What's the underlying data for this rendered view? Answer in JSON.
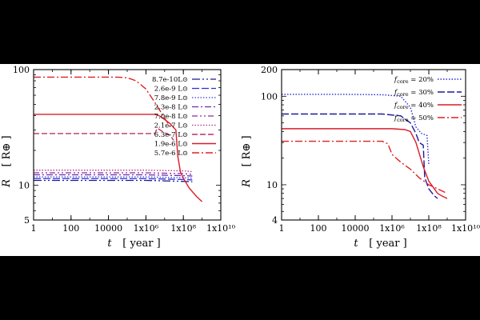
{
  "chart_data": [
    {
      "type": "line",
      "xscale": "log",
      "yscale": "log",
      "xlim": [
        1,
        10000000000
      ],
      "ylim": [
        5,
        100
      ],
      "xlabel": "t",
      "xunit": "[ year ]",
      "ylabel": "R",
      "yunit": "[ R⊕ ]",
      "xticks": [
        {
          "v": 1,
          "label": "1"
        },
        {
          "v": 100,
          "label": "100"
        },
        {
          "v": 10000,
          "label": "10000"
        },
        {
          "v": 1000000,
          "label": "1x10⁶"
        },
        {
          "v": 100000000,
          "label": "1x10⁸"
        },
        {
          "v": 10000000000,
          "label": "1x10¹⁰"
        }
      ],
      "yticks": [
        {
          "v": 5,
          "label": "5"
        },
        {
          "v": 10,
          "label": "10"
        },
        {
          "v": 100,
          "label": "100"
        }
      ],
      "legend_position": "right",
      "series": [
        {
          "name": "8.7e-10L⊙",
          "color": "#1a1a8c",
          "dash": "10,3,2,3,2,3",
          "width": 1.3,
          "points": [
            [
              1,
              11.0
            ],
            [
              1000000,
              11.0
            ],
            [
              10000000,
              10.9
            ],
            [
              100000000,
              10.8
            ],
            [
              300000000,
              10.7
            ]
          ]
        },
        {
          "name": "2.6e-9 L⊙",
          "color": "#2d2de0",
          "dash": "9,3",
          "width": 1.3,
          "points": [
            [
              1,
              11.4
            ],
            [
              1000000,
              11.4
            ],
            [
              10000000,
              11.3
            ],
            [
              100000000,
              11.2
            ],
            [
              300000000,
              11.1
            ]
          ]
        },
        {
          "name": "7.8e-9 L⊙",
          "color": "#3c3cdc",
          "dash": "1.5,2",
          "width": 1.3,
          "points": [
            [
              1,
              11.8
            ],
            [
              1000000,
              11.8
            ],
            [
              10000000,
              11.7
            ],
            [
              100000000,
              11.6
            ],
            [
              300000000,
              11.5
            ]
          ]
        },
        {
          "name": "2.3e-8 L⊙",
          "color": "#6a2ab0",
          "dash": "8,3,2,3",
          "width": 1.3,
          "points": [
            [
              1,
              12.3
            ],
            [
              1000000,
              12.3
            ],
            [
              10000000,
              12.2
            ],
            [
              100000000,
              12.1
            ],
            [
              300000000,
              12.0
            ]
          ]
        },
        {
          "name": "7.0e-8 L⊙",
          "color": "#8e2a9e",
          "dash": "7,3,2,3,2,3",
          "width": 1.3,
          "points": [
            [
              1,
              12.8
            ],
            [
              1000000,
              12.8
            ],
            [
              10000000,
              12.7
            ],
            [
              100000000,
              12.6
            ],
            [
              300000000,
              12.4
            ]
          ]
        },
        {
          "name": "2.1e-7 L⊙",
          "color": "#b0308c",
          "dash": "1.5,2",
          "width": 1.3,
          "points": [
            [
              1,
              13.5
            ],
            [
              1000000,
              13.5
            ],
            [
              10000000,
              13.4
            ],
            [
              100000000,
              13.3
            ],
            [
              300000000,
              13.1
            ]
          ]
        },
        {
          "name": "6.3e-7 L⊙",
          "color": "#c0306a",
          "dash": "7,3",
          "width": 1.4,
          "points": [
            [
              1,
              28
            ],
            [
              3000000,
              28
            ],
            [
              4000000,
              31
            ],
            [
              5000000,
              30.5
            ],
            [
              8000000,
              29
            ],
            [
              20000000,
              27
            ],
            [
              30000000,
              24.5
            ]
          ]
        },
        {
          "name": "1.9e-6 L⊙",
          "color": "#d81e2a",
          "dash": "",
          "width": 1.4,
          "points": [
            [
              1,
              41
            ],
            [
              3000000,
              41
            ],
            [
              5000000,
              40
            ],
            [
              10000000,
              37
            ],
            [
              20000000,
              34
            ],
            [
              40000000,
              30
            ],
            [
              50000000,
              18
            ],
            [
              70000000,
              13
            ],
            [
              100000000,
              11.5
            ],
            [
              200000000,
              9.5
            ],
            [
              500000000,
              8
            ],
            [
              1000000000,
              7.2
            ]
          ]
        },
        {
          "name": "5.7e-6 L⊙",
          "color": "#e02020",
          "dash": "9,3,2,3",
          "width": 1.4,
          "points": [
            [
              1,
              86
            ],
            [
              30000,
              86
            ],
            [
              100000,
              85
            ],
            [
              300000,
              80
            ],
            [
              1000000,
              68
            ],
            [
              3000000,
              52
            ],
            [
              10000000,
              38
            ],
            [
              20000000,
              32
            ]
          ]
        }
      ]
    },
    {
      "type": "line",
      "xscale": "log",
      "yscale": "log",
      "xlim": [
        1,
        10000000000
      ],
      "ylim": [
        4,
        200
      ],
      "xlabel": "t",
      "xunit": "[ year ]",
      "ylabel": "R",
      "yunit": "[ R⊕ ]",
      "xticks": [
        {
          "v": 1,
          "label": "1"
        },
        {
          "v": 100,
          "label": "100"
        },
        {
          "v": 10000,
          "label": "10000"
        },
        {
          "v": 1000000,
          "label": "1x10⁶"
        },
        {
          "v": 100000000,
          "label": "1x10⁸"
        },
        {
          "v": 10000000000,
          "label": "1x10¹⁰"
        }
      ],
      "yticks": [
        {
          "v": 4,
          "label": "4"
        },
        {
          "v": 10,
          "label": "10"
        },
        {
          "v": 100,
          "label": "100"
        },
        {
          "v": 200,
          "label": "200"
        }
      ],
      "legend_position": "top-right",
      "legend_prefix": "f",
      "legend_sub": "core",
      "series": [
        {
          "name": " = 20%",
          "color": "#2a2ad8",
          "dash": "1.5,2",
          "width": 1.4,
          "points": [
            [
              1,
              105
            ],
            [
              3000,
              105
            ],
            [
              300000,
              104
            ],
            [
              3000000,
              100
            ],
            [
              10000000,
              75
            ],
            [
              20000000,
              45
            ],
            [
              40000000,
              38
            ],
            [
              80000000,
              36
            ],
            [
              100000000,
              17
            ]
          ]
        },
        {
          "name": " = 30%",
          "color": "#1a1aa0",
          "dash": "9,3",
          "width": 1.4,
          "points": [
            [
              1,
              63
            ],
            [
              300000,
              63
            ],
            [
              3000000,
              60
            ],
            [
              10000000,
              50
            ],
            [
              20000000,
              38
            ],
            [
              30000000,
              30
            ],
            [
              50000000,
              28
            ],
            [
              60000000,
              12
            ],
            [
              100000000,
              9
            ],
            [
              200000000,
              7.5
            ],
            [
              300000000,
              7
            ]
          ]
        },
        {
          "name": " = 40%",
          "color": "#d81e2a",
          "dash": "",
          "width": 1.4,
          "points": [
            [
              1,
              43
            ],
            [
              1000000,
              43
            ],
            [
              5000000,
              42
            ],
            [
              10000000,
              40
            ],
            [
              20000000,
              30
            ],
            [
              50000000,
              16
            ],
            [
              100000000,
              11
            ],
            [
              200000000,
              9
            ],
            [
              300000000,
              8
            ],
            [
              500000000,
              7.5
            ],
            [
              1000000000,
              7
            ]
          ]
        },
        {
          "name": " = 50%",
          "color": "#e02020",
          "dash": "9,3,2,3",
          "width": 1.4,
          "points": [
            [
              1,
              31
            ],
            [
              300000,
              31
            ],
            [
              600000,
              29
            ],
            [
              1000000,
              22
            ],
            [
              3000000,
              18
            ],
            [
              10000000,
              15
            ],
            [
              30000000,
              12
            ],
            [
              100000000,
              10
            ],
            [
              300000000,
              9
            ],
            [
              1000000000,
              8
            ]
          ]
        }
      ]
    }
  ]
}
